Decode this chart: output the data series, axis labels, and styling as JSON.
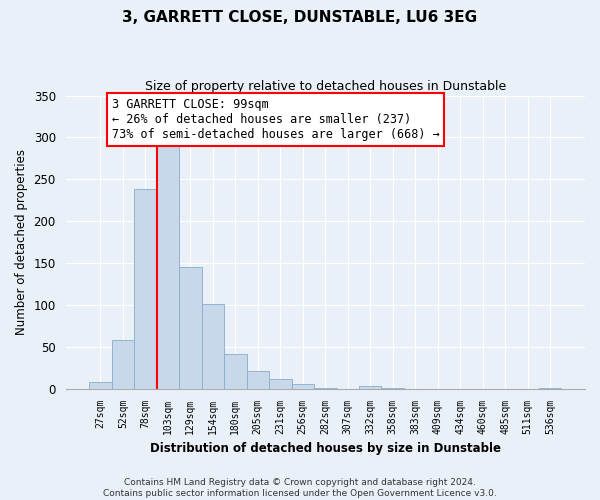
{
  "title": "3, GARRETT CLOSE, DUNSTABLE, LU6 3EG",
  "subtitle": "Size of property relative to detached houses in Dunstable",
  "xlabel": "Distribution of detached houses by size in Dunstable",
  "ylabel": "Number of detached properties",
  "bin_labels": [
    "27sqm",
    "52sqm",
    "78sqm",
    "103sqm",
    "129sqm",
    "154sqm",
    "180sqm",
    "205sqm",
    "231sqm",
    "256sqm",
    "282sqm",
    "307sqm",
    "332sqm",
    "358sqm",
    "383sqm",
    "409sqm",
    "434sqm",
    "460sqm",
    "485sqm",
    "511sqm",
    "536sqm"
  ],
  "bar_heights": [
    8,
    58,
    238,
    290,
    145,
    101,
    42,
    21,
    12,
    6,
    1,
    0,
    3,
    1,
    0,
    0,
    0,
    0,
    0,
    0,
    1
  ],
  "bar_color": "#c8d8ea",
  "bar_edge_color": "#85aec8",
  "vline_index": 3,
  "vline_color": "red",
  "ylim": [
    0,
    350
  ],
  "yticks": [
    0,
    50,
    100,
    150,
    200,
    250,
    300,
    350
  ],
  "annotation_title": "3 GARRETT CLOSE: 99sqm",
  "annotation_line1": "← 26% of detached houses are smaller (237)",
  "annotation_line2": "73% of semi-detached houses are larger (668) →",
  "annotation_box_color": "white",
  "annotation_box_edge": "red",
  "footer_line1": "Contains HM Land Registry data © Crown copyright and database right 2024.",
  "footer_line2": "Contains public sector information licensed under the Open Government Licence v3.0.",
  "bg_color": "#eaf0f8",
  "grid_color": "white"
}
